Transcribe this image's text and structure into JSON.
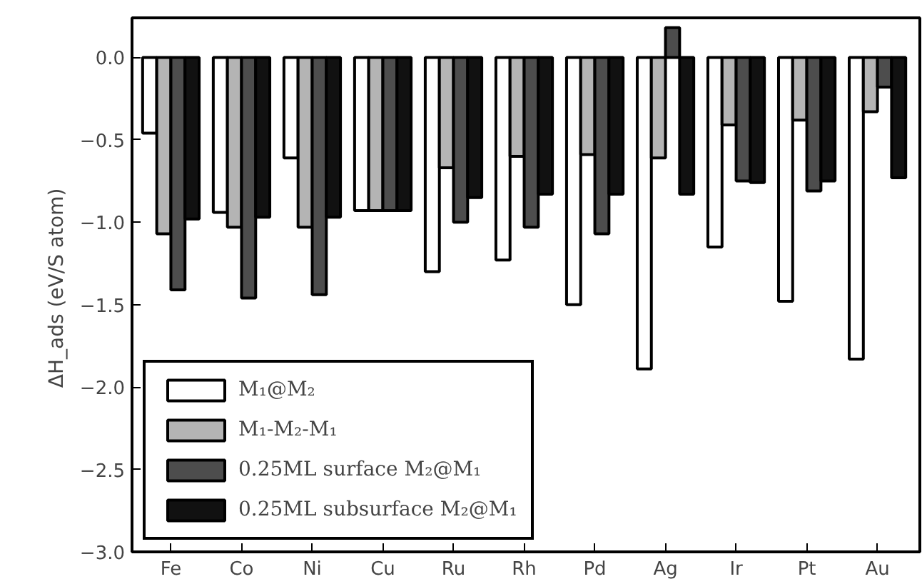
{
  "chart_data": {
    "type": "bar",
    "ylabel": "ΔH_ads  (eV/S atom)",
    "categories": [
      "Fe",
      "Co",
      "Ni",
      "Cu",
      "Ru",
      "Rh",
      "Pd",
      "Ag",
      "Ir",
      "Pt",
      "Au"
    ],
    "series": [
      {
        "name": "M₁@M₂",
        "color": "#ffffff",
        "values": [
          -0.46,
          -0.94,
          -0.61,
          -0.93,
          -1.3,
          -1.23,
          -1.5,
          -1.89,
          -1.15,
          -1.48,
          -1.83
        ]
      },
      {
        "name": "M₁-M₂-M₁",
        "color": "#b4b4b4",
        "values": [
          -1.07,
          -1.03,
          -1.03,
          -0.93,
          -0.67,
          -0.6,
          -0.59,
          -0.61,
          -0.41,
          -0.38,
          -0.33
        ]
      },
      {
        "name": "0.25ML surface M₂@M₁",
        "color": "#4d4d4d",
        "values": [
          -1.41,
          -1.46,
          -1.44,
          -0.93,
          -1.0,
          -1.03,
          -1.07,
          0.18,
          -0.75,
          -0.81,
          -0.18
        ]
      },
      {
        "name": "0.25ML subsurface M₂@M₁",
        "color": "#111111",
        "values": [
          -0.98,
          -0.97,
          -0.97,
          -0.93,
          -0.85,
          -0.83,
          -0.83,
          -0.83,
          -0.76,
          -0.75,
          -0.73
        ]
      }
    ],
    "ylim": [
      -3.0,
      0.24
    ],
    "yticks": [
      {
        "value": -3.0,
        "label": "−3.0"
      },
      {
        "value": -2.5,
        "label": "−2.5"
      },
      {
        "value": -2.0,
        "label": "−2.0"
      },
      {
        "value": -1.5,
        "label": "−1.5"
      },
      {
        "value": -1.0,
        "label": "−1.0"
      },
      {
        "value": -0.5,
        "label": "−0.5"
      },
      {
        "value": 0.0,
        "label": "0.0"
      }
    ],
    "grid": false,
    "legend": "bottom left"
  }
}
